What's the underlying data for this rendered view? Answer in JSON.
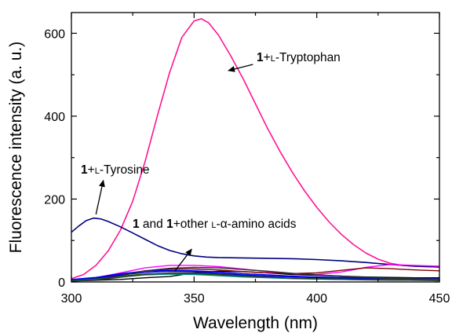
{
  "chart_data": {
    "type": "line",
    "xlabel": "Wavelength (nm)",
    "ylabel": "Fluorescence intensity (a. u.)",
    "xlim": [
      300,
      450
    ],
    "ylim": [
      0,
      650
    ],
    "x_ticks": [
      300,
      350,
      400,
      450
    ],
    "y_ticks": [
      0,
      200,
      400,
      600
    ],
    "grid": false,
    "legend": "none",
    "annotations": [
      {
        "id": "tryptophan",
        "bold": "1",
        "rest": "+",
        "smallcaps": "L",
        "tail": "-Tryptophan",
        "arrow_from": [
          374,
          525
        ],
        "arrow_to": [
          364,
          510
        ]
      },
      {
        "id": "tyrosine",
        "bold": "1",
        "rest": "+",
        "smallcaps": "L",
        "tail": "-Tyrosine",
        "arrow_from": [
          310,
          163
        ],
        "arrow_to": [
          313,
          245
        ]
      },
      {
        "id": "others",
        "bold": "1",
        "mid": " and ",
        "bold2": "1",
        "rest": "+other ",
        "smallcaps": "L",
        "tail": "-α-amino acids",
        "arrow_from": [
          342,
          25
        ],
        "arrow_to": [
          349,
          79
        ]
      }
    ],
    "series": [
      {
        "color": "#ff1493",
        "width": 1.6,
        "points": [
          [
            300,
            8
          ],
          [
            305,
            18
          ],
          [
            310,
            40
          ],
          [
            315,
            75
          ],
          [
            320,
            125
          ],
          [
            325,
            195
          ],
          [
            330,
            290
          ],
          [
            335,
            400
          ],
          [
            340,
            505
          ],
          [
            345,
            590
          ],
          [
            350,
            630
          ],
          [
            353,
            635
          ],
          [
            356,
            625
          ],
          [
            360,
            595
          ],
          [
            365,
            545
          ],
          [
            370,
            490
          ],
          [
            375,
            430
          ],
          [
            380,
            370
          ],
          [
            385,
            315
          ],
          [
            390,
            265
          ],
          [
            395,
            220
          ],
          [
            400,
            180
          ],
          [
            405,
            145
          ],
          [
            410,
            115
          ],
          [
            415,
            90
          ],
          [
            420,
            70
          ],
          [
            425,
            55
          ],
          [
            430,
            45
          ],
          [
            435,
            40
          ],
          [
            440,
            38
          ],
          [
            445,
            37
          ],
          [
            450,
            36
          ]
        ]
      },
      {
        "color": "#000080",
        "width": 1.6,
        "points": [
          [
            300,
            120
          ],
          [
            303,
            135
          ],
          [
            306,
            148
          ],
          [
            309,
            154
          ],
          [
            312,
            152
          ],
          [
            315,
            146
          ],
          [
            320,
            133
          ],
          [
            325,
            118
          ],
          [
            330,
            103
          ],
          [
            335,
            88
          ],
          [
            340,
            76
          ],
          [
            345,
            68
          ],
          [
            350,
            63
          ],
          [
            355,
            60
          ],
          [
            360,
            59
          ],
          [
            370,
            58
          ],
          [
            380,
            57
          ],
          [
            390,
            56
          ],
          [
            400,
            54
          ],
          [
            410,
            51
          ],
          [
            420,
            47
          ],
          [
            430,
            42
          ],
          [
            440,
            38
          ],
          [
            450,
            36
          ]
        ]
      },
      {
        "color": "#000000",
        "width": 1.4,
        "points": [
          [
            300,
            3
          ],
          [
            310,
            4
          ],
          [
            320,
            6
          ],
          [
            330,
            10
          ],
          [
            340,
            13
          ],
          [
            350,
            22
          ],
          [
            360,
            26
          ],
          [
            370,
            25
          ],
          [
            380,
            22
          ],
          [
            390,
            18
          ],
          [
            400,
            16
          ],
          [
            410,
            14
          ],
          [
            420,
            12
          ],
          [
            430,
            11
          ],
          [
            440,
            10
          ],
          [
            450,
            10
          ]
        ]
      },
      {
        "color": "#ff00ff",
        "width": 1.4,
        "points": [
          [
            300,
            5
          ],
          [
            310,
            10
          ],
          [
            320,
            22
          ],
          [
            330,
            34
          ],
          [
            340,
            40
          ],
          [
            350,
            40
          ],
          [
            360,
            37
          ],
          [
            370,
            31
          ],
          [
            380,
            25
          ],
          [
            390,
            20
          ],
          [
            400,
            18
          ],
          [
            410,
            24
          ],
          [
            420,
            35
          ],
          [
            430,
            42
          ],
          [
            440,
            40
          ],
          [
            450,
            38
          ]
        ]
      },
      {
        "color": "#800000",
        "width": 1.4,
        "points": [
          [
            300,
            4
          ],
          [
            310,
            8
          ],
          [
            320,
            18
          ],
          [
            330,
            27
          ],
          [
            340,
            31
          ],
          [
            350,
            31
          ],
          [
            360,
            29
          ],
          [
            370,
            25
          ],
          [
            380,
            22
          ],
          [
            390,
            20
          ],
          [
            400,
            22
          ],
          [
            410,
            28
          ],
          [
            420,
            34
          ],
          [
            430,
            32
          ],
          [
            440,
            29
          ],
          [
            450,
            27
          ]
        ]
      },
      {
        "color": "#0000ff",
        "width": 1.4,
        "points": [
          [
            300,
            6
          ],
          [
            310,
            11
          ],
          [
            320,
            20
          ],
          [
            330,
            26
          ],
          [
            340,
            28
          ],
          [
            350,
            27
          ],
          [
            360,
            24
          ],
          [
            370,
            20
          ],
          [
            380,
            17
          ],
          [
            390,
            14
          ],
          [
            400,
            12
          ],
          [
            410,
            11
          ],
          [
            420,
            10
          ],
          [
            430,
            9
          ],
          [
            440,
            9
          ],
          [
            450,
            8
          ]
        ]
      },
      {
        "color": "#0000cd",
        "width": 1.4,
        "points": [
          [
            300,
            4
          ],
          [
            310,
            9
          ],
          [
            320,
            17
          ],
          [
            330,
            23
          ],
          [
            340,
            26
          ],
          [
            350,
            25
          ],
          [
            360,
            21
          ],
          [
            370,
            17
          ],
          [
            380,
            14
          ],
          [
            390,
            12
          ],
          [
            400,
            10
          ],
          [
            410,
            9
          ],
          [
            420,
            8
          ],
          [
            430,
            8
          ],
          [
            440,
            7
          ],
          [
            450,
            7
          ]
        ]
      },
      {
        "color": "#006400",
        "width": 1.4,
        "points": [
          [
            300,
            3
          ],
          [
            310,
            7
          ],
          [
            320,
            14
          ],
          [
            330,
            19
          ],
          [
            340,
            21
          ],
          [
            350,
            20
          ],
          [
            360,
            17
          ],
          [
            370,
            14
          ],
          [
            380,
            11
          ],
          [
            390,
            9
          ],
          [
            400,
            8
          ],
          [
            410,
            7
          ],
          [
            420,
            6
          ],
          [
            430,
            6
          ],
          [
            440,
            5
          ],
          [
            450,
            5
          ]
        ]
      },
      {
        "color": "#008080",
        "width": 1.4,
        "points": [
          [
            300,
            3
          ],
          [
            310,
            6
          ],
          [
            320,
            12
          ],
          [
            330,
            17
          ],
          [
            340,
            19
          ],
          [
            350,
            18
          ],
          [
            360,
            15
          ],
          [
            370,
            12
          ],
          [
            380,
            10
          ],
          [
            390,
            8
          ],
          [
            400,
            7
          ],
          [
            410,
            6
          ],
          [
            420,
            5
          ],
          [
            430,
            5
          ],
          [
            440,
            4
          ],
          [
            450,
            4
          ]
        ]
      },
      {
        "color": "#2f2f2f",
        "width": 1.4,
        "points": [
          [
            300,
            2
          ],
          [
            310,
            5
          ],
          [
            320,
            15
          ],
          [
            330,
            27
          ],
          [
            340,
            33
          ],
          [
            350,
            35
          ],
          [
            360,
            34
          ],
          [
            370,
            30
          ],
          [
            380,
            26
          ],
          [
            390,
            21
          ],
          [
            400,
            17
          ],
          [
            410,
            14
          ],
          [
            420,
            11
          ],
          [
            430,
            9
          ],
          [
            440,
            8
          ],
          [
            450,
            7
          ]
        ]
      },
      {
        "color": "#333333",
        "width": 1.2,
        "points": [
          [
            300,
            2
          ],
          [
            310,
            4
          ],
          [
            320,
            11
          ],
          [
            330,
            18
          ],
          [
            340,
            22
          ],
          [
            350,
            22
          ],
          [
            360,
            19
          ],
          [
            370,
            15
          ],
          [
            380,
            12
          ],
          [
            390,
            9
          ],
          [
            400,
            7
          ],
          [
            410,
            6
          ],
          [
            420,
            5
          ],
          [
            430,
            4
          ],
          [
            440,
            4
          ],
          [
            450,
            3
          ]
        ]
      }
    ]
  }
}
